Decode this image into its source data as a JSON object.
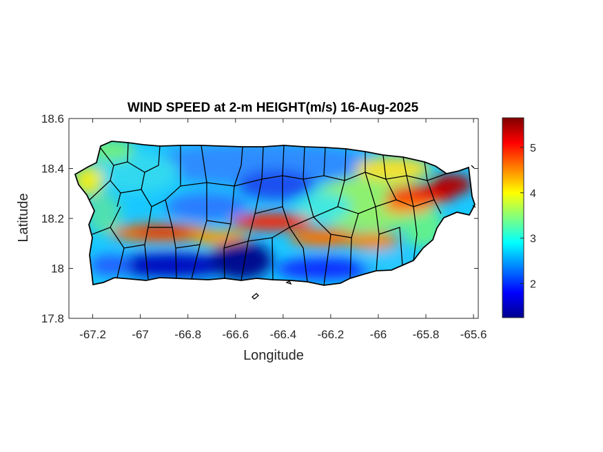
{
  "chart_data": {
    "type": "heatmap",
    "title": "WIND SPEED at 2-m HEIGHT(m/s) 16-Aug-2025",
    "xlabel": "Longitude",
    "ylabel": "Latitude",
    "xlim": [
      -67.3,
      -65.58
    ],
    "ylim": [
      17.8,
      18.6
    ],
    "xticks": [
      -67.2,
      -67,
      -66.8,
      -66.6,
      -66.4,
      -66.2,
      -66,
      -65.8,
      -65.6
    ],
    "xtick_labels": [
      "-67.2",
      "-67",
      "-66.8",
      "-66.6",
      "-66.4",
      "-66.2",
      "-66",
      "-65.8",
      "-65.6"
    ],
    "yticks": [
      17.8,
      18,
      18.2,
      18.4,
      18.6
    ],
    "ytick_labels": [
      "17.8",
      "18",
      "18.2",
      "18.4",
      "18.6"
    ],
    "colorbar": {
      "colormap": "jet",
      "range": [
        1.25,
        5.65
      ],
      "ticks": [
        2,
        3,
        4,
        5
      ],
      "tick_labels": [
        "2",
        "3",
        "4",
        "5"
      ]
    },
    "grid": false,
    "wind_speed_field": {
      "description_points": [
        {
          "lon": -66.45,
          "lat": 18.14,
          "value": 5.0
        },
        {
          "lon": -66.85,
          "lat": 18.13,
          "value": 5.0
        },
        {
          "lon": -66.15,
          "lat": 18.12,
          "value": 4.8
        },
        {
          "lon": -65.85,
          "lat": 18.28,
          "value": 5.3
        },
        {
          "lon": -65.68,
          "lat": 18.33,
          "value": 5.6
        },
        {
          "lon": -66.4,
          "lat": 18.33,
          "value": 1.8
        },
        {
          "lon": -66.6,
          "lat": 17.97,
          "value": 1.3
        },
        {
          "lon": -66.9,
          "lat": 17.97,
          "value": 1.5
        },
        {
          "lon": -66.7,
          "lat": 18.4,
          "value": 2.4
        },
        {
          "lon": -66.2,
          "lat": 18.42,
          "value": 2.2
        },
        {
          "lon": -67.1,
          "lat": 18.45,
          "value": 3.3
        },
        {
          "lon": -67.2,
          "lat": 18.38,
          "value": 3.9
        },
        {
          "lon": -66.0,
          "lat": 18.42,
          "value": 3.5
        },
        {
          "lon": -66.1,
          "lat": 18.22,
          "value": 3.2
        },
        {
          "lon": -65.9,
          "lat": 18.1,
          "value": 3.0
        },
        {
          "lon": -66.3,
          "lat": 17.96,
          "value": 2.0
        },
        {
          "lon": -67.15,
          "lat": 18.05,
          "value": 2.8
        }
      ]
    }
  }
}
